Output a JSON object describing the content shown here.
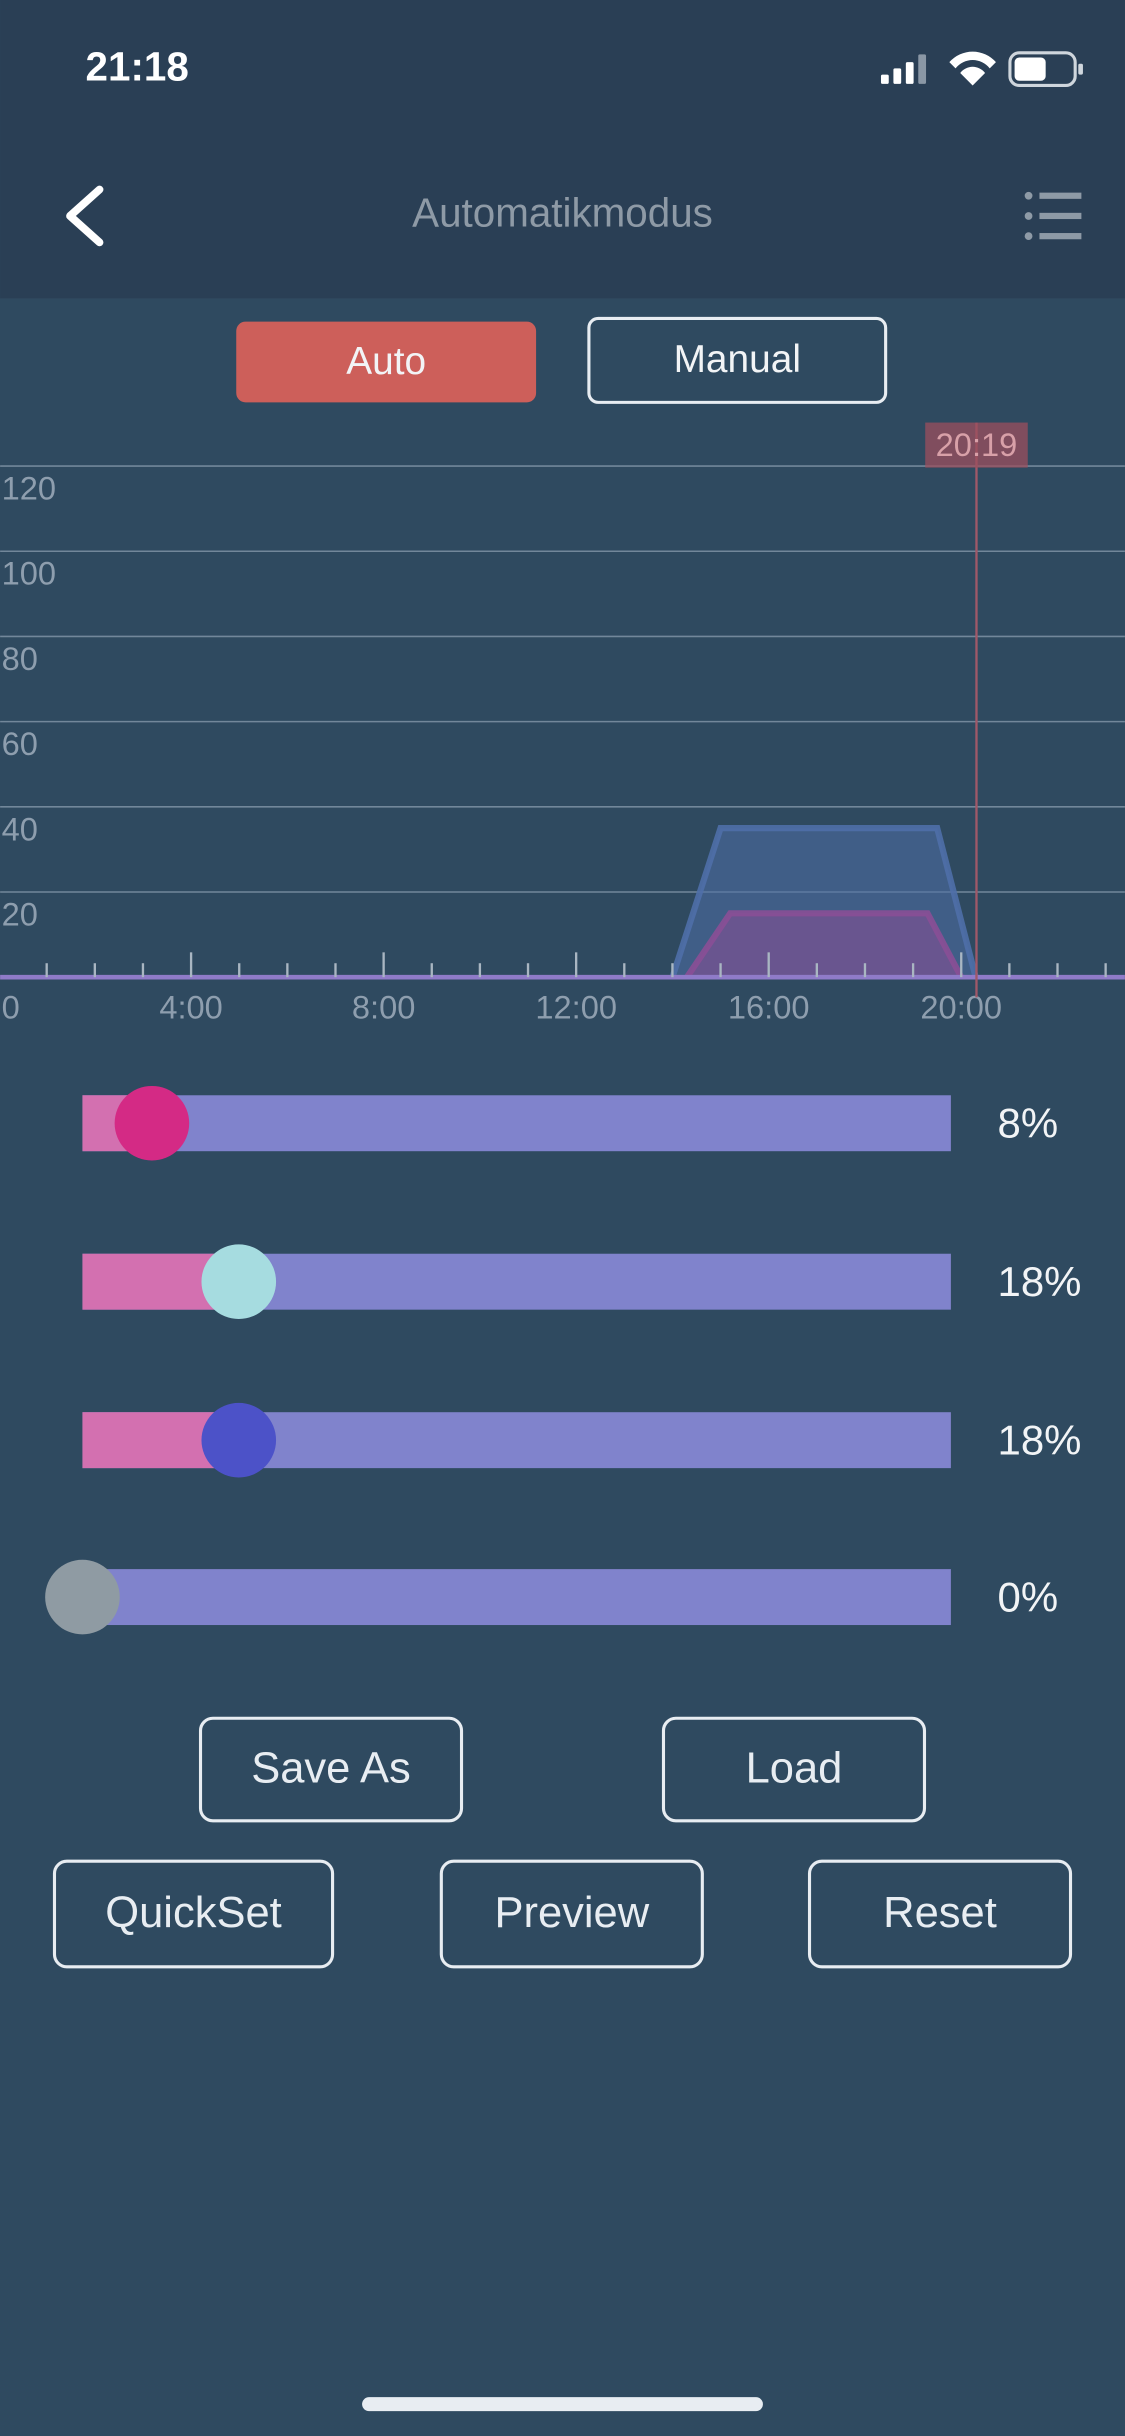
{
  "status_bar": {
    "time": "21:18"
  },
  "header": {
    "title": "Automatikmodus"
  },
  "mode_tabs": {
    "items": [
      "Auto",
      "Manual"
    ],
    "active": 0
  },
  "chart": {
    "type": "area",
    "xlim": [
      0,
      23.4
    ],
    "ylim": [
      0,
      120
    ],
    "yticks": [
      20,
      40,
      60,
      80,
      100,
      120
    ],
    "xticks": [
      0,
      {
        "value": 4,
        "label": "4:00"
      },
      {
        "value": 8,
        "label": "8:00"
      },
      {
        "value": 12,
        "label": "12:00"
      },
      {
        "value": 16,
        "label": "16:00"
      },
      {
        "value": 20,
        "label": "20:00"
      }
    ],
    "minor_xticks": [
      1,
      2,
      3,
      5,
      6,
      7,
      9,
      10,
      11,
      13,
      14,
      15,
      17,
      18,
      19,
      21,
      22,
      23
    ],
    "grid": true,
    "series": [
      {
        "color": "#4f6fa8",
        "x": [
          14,
          15,
          19.5,
          20.3
        ],
        "values": [
          0,
          35,
          35,
          0
        ]
      },
      {
        "color": "#8a4f96",
        "x": [
          14.3,
          15.2,
          19.3,
          20
        ],
        "values": [
          0,
          15,
          15,
          0
        ]
      }
    ],
    "marker": {
      "value": 20.3167,
      "label": "20:19"
    }
  },
  "sliders": {
    "range": [
      0,
      100
    ],
    "values": [
      8,
      18,
      18,
      0
    ],
    "value_labels": [
      "8%",
      "18%",
      "18%",
      "0%"
    ],
    "thumb_colors": [
      "#d42a85",
      "#a6dce0",
      "#4c52c8",
      "#8f9ba3"
    ],
    "fill_color": "#d370b0",
    "track_color": "#8083cc"
  },
  "buttons": {
    "row1": [
      "Save As",
      "Load"
    ],
    "row2": [
      "QuickSet",
      "Preview",
      "Reset"
    ]
  }
}
